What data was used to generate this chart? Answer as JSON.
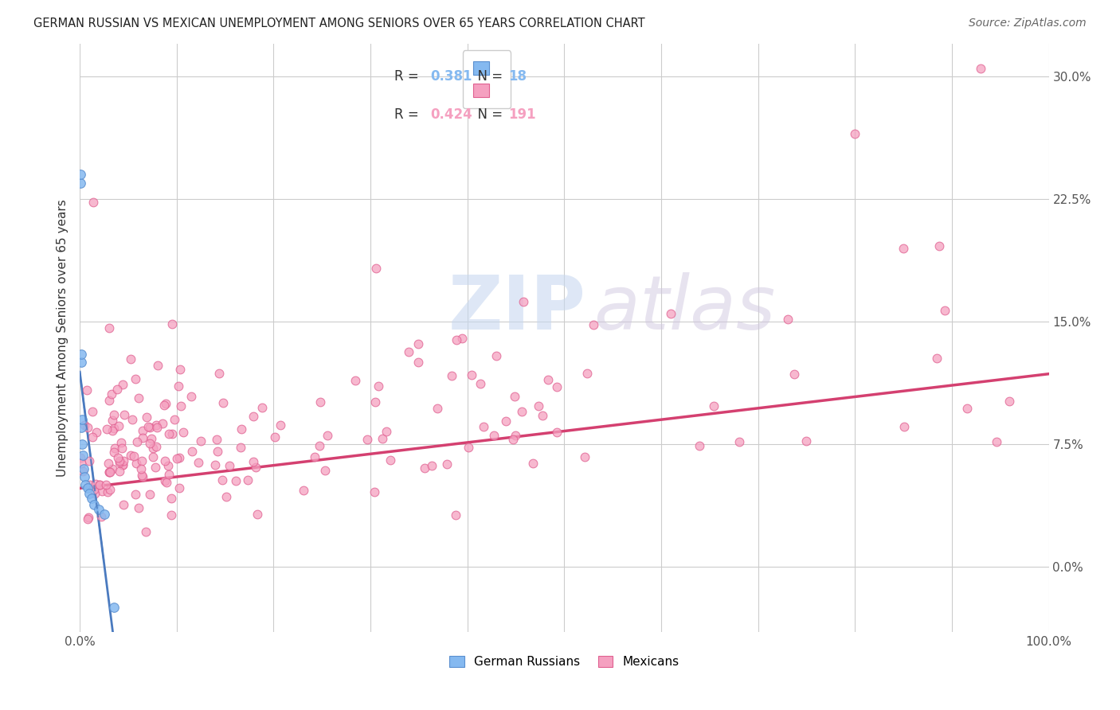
{
  "title": "GERMAN RUSSIAN VS MEXICAN UNEMPLOYMENT AMONG SENIORS OVER 65 YEARS CORRELATION CHART",
  "source": "Source: ZipAtlas.com",
  "ylabel": "Unemployment Among Seniors over 65 years",
  "legend_blue_r": "0.381",
  "legend_blue_n": "18",
  "legend_pink_r": "0.424",
  "legend_pink_n": "191",
  "blue_color": "#85b9f0",
  "blue_edge": "#5a8fcf",
  "pink_color": "#f5a0c0",
  "pink_edge": "#e06090",
  "trend_blue_color": "#4a7abf",
  "trend_pink_color": "#d44070",
  "watermark_zip": "ZIP",
  "watermark_atlas": "atlas",
  "xlim": [
    0,
    1.0
  ],
  "ylim": [
    -0.04,
    0.32
  ],
  "ytick_vals": [
    0.0,
    0.075,
    0.15,
    0.225,
    0.3
  ],
  "ytick_labels": [
    "0.0%",
    "7.5%",
    "15.0%",
    "22.5%",
    "30.0%"
  ],
  "xtick_vals": [
    0.0,
    0.1,
    0.2,
    0.3,
    0.4,
    0.5,
    0.6,
    0.7,
    0.8,
    0.9,
    1.0
  ],
  "xtick_labels": [
    "0.0%",
    "",
    "",
    "",
    "",
    "",
    "",
    "",
    "",
    "",
    "100.0%"
  ]
}
